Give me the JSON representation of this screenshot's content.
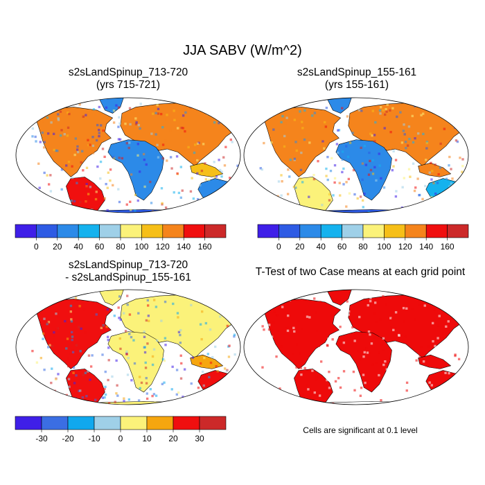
{
  "page": {
    "title": "JJA SABV (W/m^2)"
  },
  "panels": {
    "top_left": {
      "line1": "s2sLandSpinup_713-720",
      "line2": "(yrs 715-721)"
    },
    "top_right": {
      "line1": "s2sLandSpinup_155-161",
      "line2": "(yrs 155-161)"
    },
    "bottom_left": {
      "line1": "s2sLandSpinup_713-720",
      "line2": "- s2sLandSpinup_155-161"
    },
    "bottom_right": {
      "line1": "T-Test of two Case means at each grid point"
    }
  },
  "note": "Cells are significant at 0.1 level",
  "chart_data": [
    {
      "type": "heatmap",
      "title": "s2sLandSpinup_713-720 (yrs 715-721)",
      "map": "world (Robinson projection)",
      "colorbar": {
        "ticks": [
          "0",
          "20",
          "40",
          "60",
          "80",
          "100",
          "120",
          "140",
          "160"
        ],
        "colors": [
          "#3f1fe8",
          "#2e5be4",
          "#2c8ae8",
          "#15b2ee",
          "#9fd0e8",
          "#fbf27a",
          "#f6bf18",
          "#f5841c",
          "#f00f0f",
          "#cc2929"
        ]
      }
    },
    {
      "type": "heatmap",
      "title": "s2sLandSpinup_155-161 (yrs 155-161)",
      "map": "world (Robinson projection)",
      "colorbar": {
        "ticks": [
          "0",
          "20",
          "40",
          "60",
          "80",
          "100",
          "120",
          "140",
          "160"
        ],
        "colors": [
          "#3f1fe8",
          "#2e5be4",
          "#2c8ae8",
          "#15b2ee",
          "#9fd0e8",
          "#fbf27a",
          "#f6bf18",
          "#f5841c",
          "#f00f0f",
          "#cc2929"
        ]
      }
    },
    {
      "type": "heatmap",
      "title": "s2sLandSpinup_713-720 - s2sLandSpinup_155-161",
      "map": "world (Robinson projection)",
      "colorbar": {
        "ticks": [
          "-30",
          "-20",
          "-10",
          "0",
          "10",
          "20",
          "30"
        ],
        "colors": [
          "#3f1fe8",
          "#3b6ee3",
          "#10a8ee",
          "#9fd0e8",
          "#fbf27a",
          "#f6a60f",
          "#f00f0f",
          "#cc2929"
        ]
      }
    },
    {
      "type": "heatmap",
      "title": "T-Test of two Case means at each grid point",
      "map": "world (Robinson projection)",
      "significant_color": "#ee0a0a"
    }
  ]
}
